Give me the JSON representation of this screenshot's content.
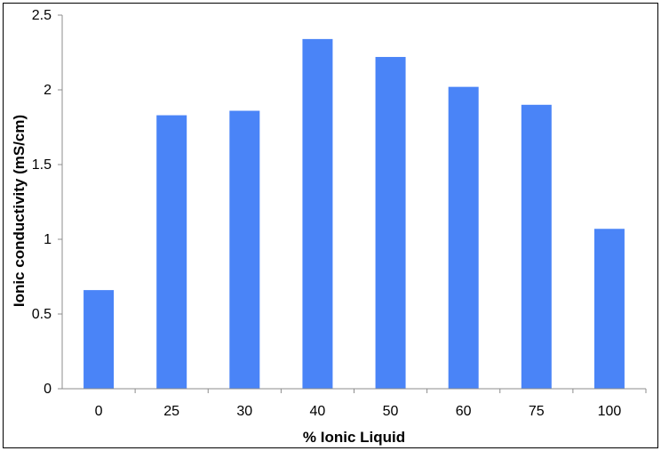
{
  "chart_data": {
    "type": "bar",
    "title": "",
    "xlabel": "% Ionic Liquid",
    "ylabel": "Ionic conductivity (mS/cm)",
    "categories": [
      "0",
      "25",
      "30",
      "40",
      "50",
      "60",
      "75",
      "100"
    ],
    "series": [
      {
        "values": [
          0.66,
          1.83,
          1.86,
          2.34,
          2.22,
          2.02,
          1.9,
          1.07
        ]
      }
    ],
    "ylim": [
      0,
      2.5
    ],
    "yticks": [
      "0",
      "0.5",
      "1",
      "1.5",
      "2",
      "2.5"
    ],
    "grid": false,
    "legend": "none",
    "colors": {
      "bar": "#4a84f7",
      "axis": "#8c8c8c",
      "frame": "#000000"
    }
  }
}
